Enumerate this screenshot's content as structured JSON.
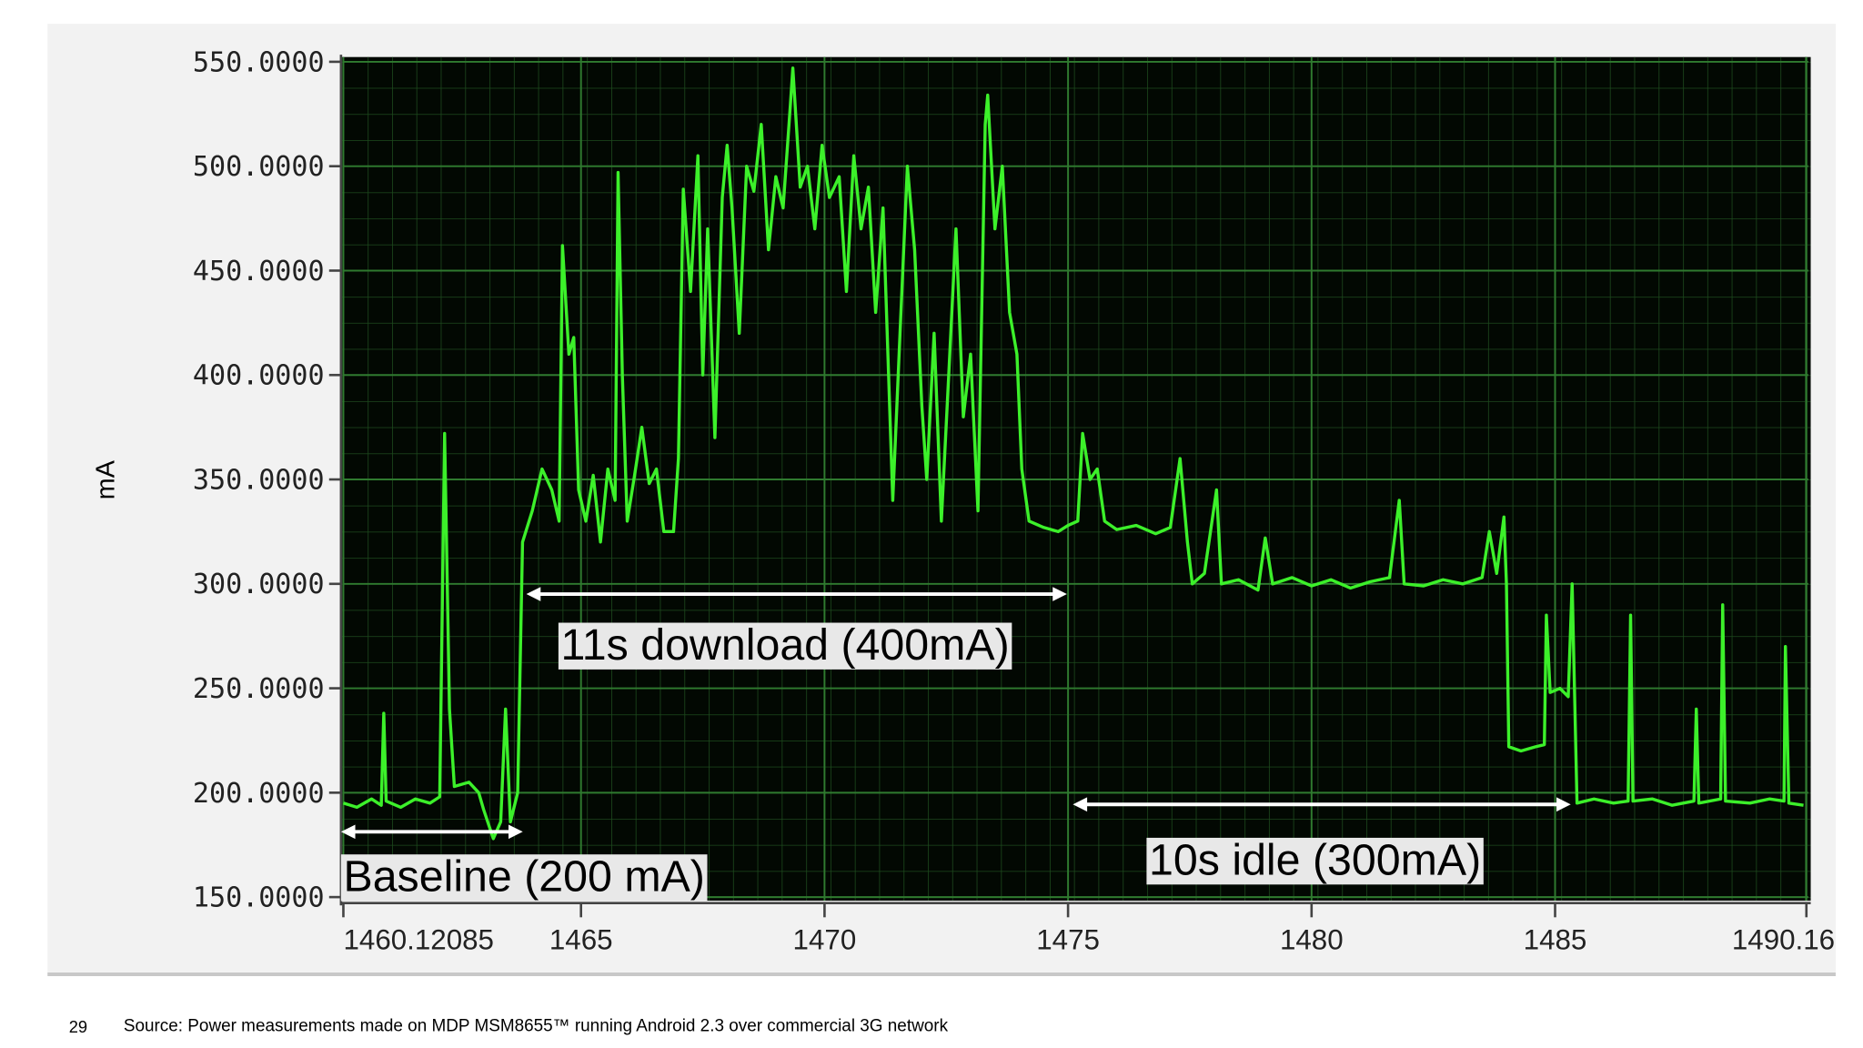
{
  "chart_data": {
    "type": "line",
    "y_label": "mA",
    "x": [
      1460.12,
      1460.4,
      1460.7,
      1460.9,
      1460.95,
      1461.0,
      1461.3,
      1461.6,
      1461.9,
      1462.1,
      1462.2,
      1462.3,
      1462.4,
      1462.7,
      1462.9,
      1463.0,
      1463.2,
      1463.35,
      1463.45,
      1463.55,
      1463.7,
      1463.8,
      1464.0,
      1464.2,
      1464.4,
      1464.55,
      1464.62,
      1464.75,
      1464.85,
      1464.95,
      1465.1,
      1465.25,
      1465.4,
      1465.55,
      1465.7,
      1465.76,
      1465.85,
      1465.95,
      1466.1,
      1466.25,
      1466.4,
      1466.55,
      1466.7,
      1466.9,
      1467.0,
      1467.1,
      1467.25,
      1467.4,
      1467.5,
      1467.6,
      1467.75,
      1467.9,
      1468.0,
      1468.1,
      1468.25,
      1468.4,
      1468.55,
      1468.7,
      1468.85,
      1469.0,
      1469.15,
      1469.3,
      1469.35,
      1469.5,
      1469.65,
      1469.8,
      1469.95,
      1470.1,
      1470.3,
      1470.45,
      1470.6,
      1470.75,
      1470.9,
      1471.05,
      1471.2,
      1471.4,
      1471.55,
      1471.7,
      1471.85,
      1472.0,
      1472.1,
      1472.25,
      1472.4,
      1472.55,
      1472.7,
      1472.85,
      1473.0,
      1473.15,
      1473.3,
      1473.35,
      1473.5,
      1473.65,
      1473.8,
      1473.95,
      1474.05,
      1474.2,
      1474.5,
      1474.8,
      1475.0,
      1475.2,
      1475.3,
      1475.45,
      1475.6,
      1475.75,
      1476.0,
      1476.4,
      1476.8,
      1477.1,
      1477.3,
      1477.45,
      1477.55,
      1477.8,
      1478.05,
      1478.15,
      1478.5,
      1478.9,
      1479.05,
      1479.2,
      1479.6,
      1480.0,
      1480.4,
      1480.8,
      1481.2,
      1481.6,
      1481.8,
      1481.9,
      1482.3,
      1482.7,
      1483.1,
      1483.5,
      1483.65,
      1483.8,
      1483.95,
      1484.0,
      1484.05,
      1484.3,
      1484.6,
      1484.78,
      1484.82,
      1484.9,
      1485.1,
      1485.27,
      1485.35,
      1485.45,
      1485.8,
      1486.2,
      1486.5,
      1486.55,
      1486.6,
      1487.0,
      1487.4,
      1487.85,
      1487.9,
      1487.95,
      1488.4,
      1488.44,
      1488.5,
      1489.0,
      1489.4,
      1489.7,
      1489.73,
      1489.8,
      1490.1
    ],
    "series": [
      {
        "color": "#3cf02a",
        "values": [
          195,
          193,
          197,
          194,
          238,
          196,
          193,
          197,
          195,
          198,
          372,
          240,
          203,
          205,
          200,
          192,
          178,
          186,
          240,
          186,
          200,
          320,
          335,
          355,
          345,
          330,
          462,
          410,
          418,
          345,
          330,
          352,
          320,
          355,
          340,
          497,
          400,
          330,
          352,
          375,
          348,
          355,
          325,
          325,
          360,
          489,
          440,
          505,
          400,
          470,
          370,
          485,
          510,
          480,
          420,
          500,
          488,
          520,
          460,
          495,
          480,
          530,
          547,
          490,
          500,
          470,
          510,
          485,
          495,
          440,
          505,
          470,
          490,
          430,
          480,
          340,
          420,
          500,
          460,
          385,
          350,
          420,
          330,
          400,
          470,
          380,
          410,
          335,
          520,
          534,
          470,
          500,
          430,
          410,
          355,
          330,
          327,
          325,
          328,
          330,
          372,
          350,
          355,
          330,
          326,
          328,
          324,
          327,
          360,
          320,
          300,
          305,
          345,
          300,
          302,
          297,
          322,
          300,
          303,
          299,
          302,
          298,
          301,
          303,
          340,
          300,
          299,
          302,
          300,
          303,
          325,
          305,
          332,
          300,
          222,
          220,
          222,
          223,
          285,
          248,
          250,
          246,
          300,
          195,
          197,
          195,
          196,
          285,
          196,
          197,
          194,
          196,
          240,
          195,
          197,
          290,
          196,
          195,
          197,
          196,
          270,
          195,
          194
        ]
      }
    ],
    "xlim": [
      1460.12085,
      1490.2
    ],
    "xticks": [
      1460.12085,
      1465,
      1470,
      1475,
      1480,
      1485,
      1490.16
    ],
    "ylim": [
      150,
      550
    ],
    "yticks": [
      {
        "value": 150,
        "label": "150.0000"
      },
      {
        "value": 200,
        "label": "200.0000"
      },
      {
        "value": 250,
        "label": "250.0000"
      },
      {
        "value": 300,
        "label": "300.0000"
      },
      {
        "value": 350,
        "label": "350.0000"
      },
      {
        "value": 400,
        "label": "400.0000"
      },
      {
        "value": 450,
        "label": "450.0000"
      },
      {
        "value": 500,
        "label": "500.0000"
      },
      {
        "value": 550,
        "label": "550.0000"
      }
    ],
    "grid": true,
    "annotations": [
      "11s download (400mA)",
      "Baseline (200 mA)",
      "10s idle (300mA)"
    ]
  },
  "footer": {
    "page_number": "29",
    "source": "Source: Power measurements made on MDP MSM8655™  running Android 2.3 over commercial 3G network"
  }
}
